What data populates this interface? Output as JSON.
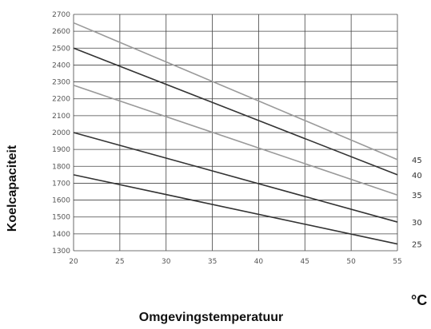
{
  "chart_data": {
    "type": "line",
    "xlabel": "Omgevingstemperatuur",
    "ylabel": "Koelcapaciteit",
    "unit": "°C",
    "xlim": [
      20,
      55
    ],
    "ylim": [
      1300,
      2700
    ],
    "x_ticks": [
      20,
      25,
      30,
      35,
      40,
      45,
      50,
      55
    ],
    "y_ticks": [
      1300,
      1400,
      1500,
      1600,
      1700,
      1800,
      1900,
      2000,
      2100,
      2200,
      2300,
      2400,
      2500,
      2600,
      2700
    ],
    "grid": true,
    "series": [
      {
        "name": "45",
        "x": [
          20,
          55
        ],
        "y": [
          2650,
          1840
        ],
        "color": "#9a9a9a"
      },
      {
        "name": "40",
        "x": [
          20,
          55
        ],
        "y": [
          2500,
          1750
        ],
        "color": "#333333"
      },
      {
        "name": "35",
        "x": [
          20,
          55
        ],
        "y": [
          2280,
          1630
        ],
        "color": "#9a9a9a"
      },
      {
        "name": "30",
        "x": [
          20,
          55
        ],
        "y": [
          2000,
          1470
        ],
        "color": "#333333"
      },
      {
        "name": "25",
        "x": [
          20,
          55
        ],
        "y": [
          1750,
          1340
        ],
        "color": "#333333"
      }
    ]
  }
}
